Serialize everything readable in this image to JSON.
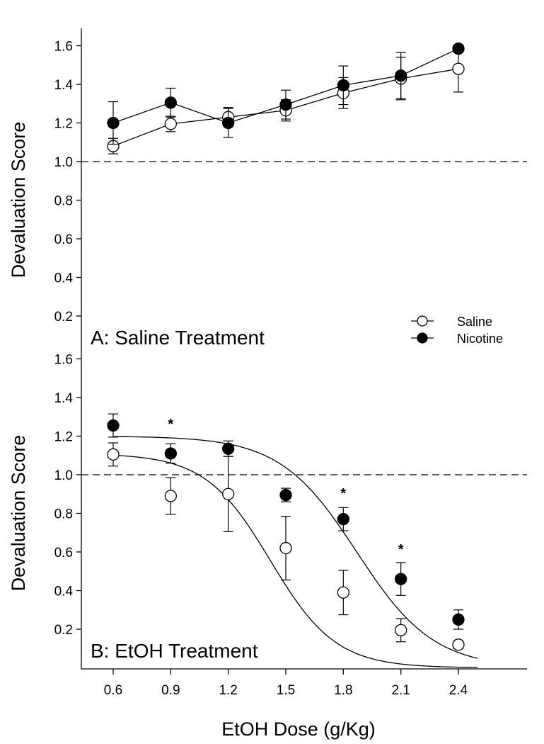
{
  "chart_data": [
    {
      "type": "line",
      "panel_label": "A: Saline Treatment",
      "ylabel": "Devaluation Score",
      "ylim": [
        0,
        1.6
      ],
      "yticks": [
        0.2,
        0.4,
        0.6,
        0.8,
        1.0,
        1.2,
        1.4,
        1.6
      ],
      "reference_line": {
        "y": 1.0,
        "style": "dashed"
      },
      "x": [
        0.6,
        0.9,
        1.2,
        1.5,
        1.8,
        2.1,
        2.4
      ],
      "series": [
        {
          "name": "Saline",
          "marker": "open-circle",
          "values": [
            1.08,
            1.195,
            1.23,
            1.265,
            1.355,
            1.43,
            1.48
          ],
          "errors": [
            0.04,
            0.04,
            0.05,
            0.055,
            0.08,
            0.11,
            0.12
          ]
        },
        {
          "name": "Nicotine",
          "marker": "filled-circle",
          "values": [
            1.2,
            1.305,
            1.2,
            1.295,
            1.395,
            1.445,
            1.585
          ],
          "errors": [
            0.11,
            0.075,
            0.075,
            0.075,
            0.1,
            0.12,
            0.02
          ]
        }
      ],
      "legend": {
        "position": "bottom-right",
        "entries": [
          "Saline",
          "Nicotine"
        ]
      }
    },
    {
      "type": "scatter",
      "panel_label": "B: EtOH Treatment",
      "ylabel": "Devaluation Score",
      "xlabel": "EtOH Dose (g/Kg)",
      "xticks": [
        0.6,
        0.9,
        1.2,
        1.5,
        1.8,
        2.1,
        2.4
      ],
      "xlim": [
        0.45,
        2.6
      ],
      "ylim": [
        0.06,
        1.6
      ],
      "yticks": [
        0.2,
        0.4,
        0.6,
        0.8,
        1.0,
        1.2,
        1.4,
        1.6
      ],
      "reference_line": {
        "y": 1.0,
        "style": "dashed"
      },
      "x": [
        0.6,
        0.9,
        1.2,
        1.5,
        1.8,
        2.1,
        2.4
      ],
      "series": [
        {
          "name": "Saline",
          "marker": "open-circle",
          "values": [
            1.105,
            0.89,
            0.9,
            0.62,
            0.39,
            0.195,
            0.12
          ],
          "errors": [
            0.06,
            0.095,
            0.195,
            0.165,
            0.115,
            0.06,
            0.02
          ],
          "fit": {
            "top": 1.11,
            "bottom": 0.0,
            "ec50": 1.42,
            "slope": 0.17
          }
        },
        {
          "name": "Nicotine",
          "marker": "filled-circle",
          "values": [
            1.255,
            1.11,
            1.135,
            0.895,
            0.77,
            0.46,
            0.25
          ],
          "errors": [
            0.06,
            0.05,
            0.04,
            0.035,
            0.06,
            0.085,
            0.05
          ],
          "fit": {
            "top": 1.2,
            "bottom": 0.0,
            "ec50": 1.87,
            "slope": 0.2
          }
        }
      ],
      "significance_markers": [
        {
          "x": 0.9,
          "y": 1.29,
          "label": "*"
        },
        {
          "x": 1.8,
          "y": 0.93,
          "label": "*"
        },
        {
          "x": 2.1,
          "y": 0.64,
          "label": "*"
        }
      ]
    }
  ]
}
